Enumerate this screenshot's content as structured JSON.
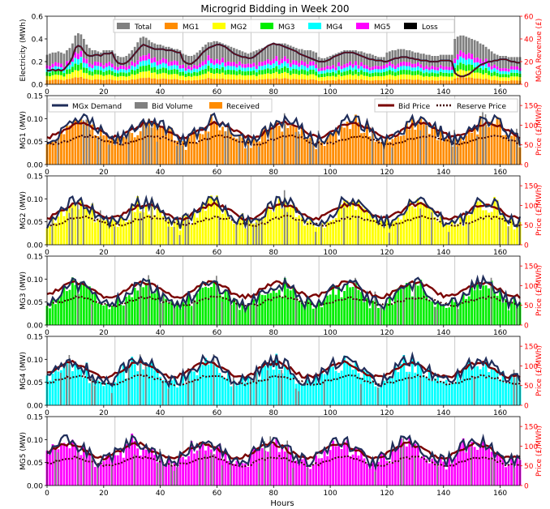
{
  "title": "Microgrid Bidding in Week 200",
  "xlabel": "Hours",
  "colors": {
    "total": "#808080",
    "mg": [
      "#ff8c00",
      "#ffff00",
      "#00ee00",
      "#00ffff",
      "#ff00ff"
    ],
    "loss": "#000000",
    "demand": "#1f2d5a",
    "bid_price": "#7a0000",
    "reserve_price": "#400000",
    "right_axis": "#ff0000"
  },
  "chart_data": [
    {
      "type": "bar",
      "panel": "summary",
      "ylabel": "Electricity (MWh)",
      "y2label": "MGA Revenue (£)",
      "ylim": [
        0,
        0.6
      ],
      "y2lim": [
        0,
        60
      ],
      "xlim": [
        0,
        167
      ],
      "yticks": [
        "0.0",
        "0.2",
        "0.4",
        "0.6"
      ],
      "y2ticks": [
        "0",
        "20",
        "40",
        "60"
      ],
      "xticks": [
        "0",
        "20",
        "40",
        "60",
        "80",
        "100",
        "120",
        "140",
        "160"
      ],
      "legend_position": "top",
      "legend": [
        "Total",
        "MG1",
        "MG2",
        "MG3",
        "MG4",
        "MG5",
        "Loss"
      ],
      "x": "hours 0–167",
      "series": [
        {
          "name": "Total",
          "values": [
            0.26,
            0.27,
            0.28,
            0.28,
            0.29,
            0.28,
            0.27,
            0.3,
            0.32,
            0.36,
            0.43,
            0.45,
            0.44,
            0.4,
            0.35,
            0.32,
            0.3,
            0.3,
            0.29,
            0.28,
            0.3,
            0.3,
            0.3,
            0.3,
            0.27,
            0.25,
            0.24,
            0.24,
            0.25,
            0.27,
            0.3,
            0.33,
            0.37,
            0.41,
            0.42,
            0.41,
            0.39,
            0.37,
            0.36,
            0.35,
            0.35,
            0.34,
            0.33,
            0.33,
            0.32,
            0.31,
            0.31,
            0.3,
            0.27,
            0.26,
            0.25,
            0.25,
            0.26,
            0.28,
            0.3,
            0.33,
            0.35,
            0.37,
            0.37,
            0.38,
            0.38,
            0.37,
            0.36,
            0.35,
            0.34,
            0.33,
            0.32,
            0.31,
            0.3,
            0.29,
            0.28,
            0.27,
            0.28,
            0.29,
            0.3,
            0.31,
            0.32,
            0.33,
            0.34,
            0.35,
            0.36,
            0.36,
            0.36,
            0.36,
            0.36,
            0.35,
            0.34,
            0.33,
            0.32,
            0.31,
            0.31,
            0.3,
            0.3,
            0.3,
            0.29,
            0.28,
            0.24,
            0.23,
            0.23,
            0.24,
            0.25,
            0.26,
            0.27,
            0.28,
            0.29,
            0.3,
            0.3,
            0.3,
            0.3,
            0.3,
            0.29,
            0.29,
            0.28,
            0.27,
            0.27,
            0.26,
            0.25,
            0.24,
            0.24,
            0.24,
            0.28,
            0.29,
            0.3,
            0.3,
            0.31,
            0.31,
            0.31,
            0.3,
            0.3,
            0.29,
            0.28,
            0.28,
            0.27,
            0.27,
            0.26,
            0.26,
            0.25,
            0.25,
            0.25,
            0.26,
            0.26,
            0.26,
            0.26,
            0.26,
            0.4,
            0.42,
            0.43,
            0.43,
            0.42,
            0.41,
            0.4,
            0.39,
            0.38,
            0.36,
            0.35,
            0.33,
            0.31,
            0.29,
            0.27,
            0.26,
            0.25,
            0.25,
            0.25,
            0.24,
            0.24,
            0.24,
            0.24,
            0.24
          ]
        },
        {
          "name": "Loss",
          "values": [
            0.12,
            0.12,
            0.13,
            0.12,
            0.13,
            0.12,
            0.13,
            0.16,
            0.19,
            0.24,
            0.32,
            0.34,
            0.33,
            0.29,
            0.26,
            0.25,
            0.25,
            0.26,
            0.26,
            0.25,
            0.27,
            0.27,
            0.27,
            0.28,
            0.22,
            0.19,
            0.18,
            0.18,
            0.19,
            0.21,
            0.24,
            0.27,
            0.3,
            0.33,
            0.35,
            0.34,
            0.33,
            0.32,
            0.31,
            0.31,
            0.31,
            0.31,
            0.3,
            0.3,
            0.3,
            0.29,
            0.28,
            0.28,
            0.21,
            0.19,
            0.18,
            0.18,
            0.2,
            0.22,
            0.25,
            0.28,
            0.3,
            0.32,
            0.33,
            0.34,
            0.35,
            0.35,
            0.34,
            0.33,
            0.31,
            0.29,
            0.27,
            0.26,
            0.25,
            0.24,
            0.24,
            0.23,
            0.23,
            0.24,
            0.26,
            0.28,
            0.3,
            0.32,
            0.34,
            0.35,
            0.36,
            0.35,
            0.35,
            0.34,
            0.33,
            0.32,
            0.31,
            0.3,
            0.29,
            0.27,
            0.26,
            0.25,
            0.24,
            0.23,
            0.22,
            0.21,
            0.2,
            0.2,
            0.2,
            0.21,
            0.22,
            0.24,
            0.25,
            0.26,
            0.27,
            0.28,
            0.28,
            0.28,
            0.28,
            0.27,
            0.26,
            0.25,
            0.24,
            0.23,
            0.22,
            0.22,
            0.21,
            0.21,
            0.21,
            0.2,
            0.2,
            0.21,
            0.22,
            0.23,
            0.23,
            0.24,
            0.24,
            0.24,
            0.23,
            0.23,
            0.22,
            0.22,
            0.21,
            0.21,
            0.21,
            0.2,
            0.2,
            0.2,
            0.2,
            0.21,
            0.21,
            0.21,
            0.21,
            0.2,
            0.1,
            0.08,
            0.07,
            0.07,
            0.08,
            0.09,
            0.11,
            0.13,
            0.15,
            0.17,
            0.18,
            0.19,
            0.2,
            0.2,
            0.21,
            0.21,
            0.22,
            0.22,
            0.22,
            0.21,
            0.2,
            0.2,
            0.19,
            0.19
          ]
        },
        {
          "name": "MG1",
          "values": "share of Total (stacked bottom)"
        },
        {
          "name": "MG2",
          "values": "share of Total"
        },
        {
          "name": "MG3",
          "values": "share of Total"
        },
        {
          "name": "MG4",
          "values": "share of Total"
        },
        {
          "name": "MG5",
          "values": "share of Total"
        }
      ]
    },
    {
      "type": "bar",
      "panel": "MG1",
      "ylabel": "MG1 (MW)",
      "y2label": "Price (£/MWh)",
      "ylim": [
        0,
        0.15
      ],
      "y2lim": [
        0,
        175
      ],
      "yticks": [
        "0.00",
        "0.05",
        "0.10",
        "0.15"
      ],
      "y2ticks": [
        "0",
        "50",
        "100",
        "150"
      ],
      "legend": [
        "MGx Demand",
        "Bid Volume",
        "Received",
        "Bid Price",
        "Reserve Price"
      ],
      "demand_level": 0.075,
      "bid_price_level": 88,
      "reserve_price_level": 62
    },
    {
      "type": "bar",
      "panel": "MG2",
      "ylabel": "MG2 (MW)",
      "y2label": "Price (£/MWh)",
      "ylim": [
        0,
        0.15
      ],
      "y2lim": [
        0,
        175
      ],
      "yticks": [
        "0.00",
        "0.05",
        "0.10",
        "0.15"
      ],
      "y2ticks": [
        "0",
        "50",
        "100",
        "150"
      ],
      "demand_level": 0.072,
      "bid_price_level": 85,
      "reserve_price_level": 60
    },
    {
      "type": "bar",
      "panel": "MG3",
      "ylabel": "MG3 (MW)",
      "y2label": "Price (£/MWh)",
      "ylim": [
        0,
        0.15
      ],
      "y2lim": [
        0,
        175
      ],
      "yticks": [
        "0.00",
        "0.05",
        "0.10",
        "0.15"
      ],
      "y2ticks": [
        "0",
        "50",
        "100",
        "150"
      ],
      "demand_level": 0.068,
      "bid_price_level": 90,
      "reserve_price_level": 60
    },
    {
      "type": "bar",
      "panel": "MG4",
      "ylabel": "MG4 (MW)",
      "y2label": "Price (£/MWh)",
      "ylim": [
        0,
        0.15
      ],
      "y2lim": [
        0,
        175
      ],
      "yticks": [
        "0.00",
        "0.05",
        "0.10",
        "0.15"
      ],
      "y2ticks": [
        "0",
        "50",
        "100",
        "150"
      ],
      "demand_level": 0.075,
      "bid_price_level": 90,
      "reserve_price_level": 64
    },
    {
      "type": "bar",
      "panel": "MG5",
      "ylabel": "MG5 (MW)",
      "y2label": "Price (£/MWh)",
      "ylim": [
        0,
        0.15
      ],
      "y2lim": [
        0,
        175
      ],
      "yticks": [
        "0.00",
        "0.05",
        "0.10",
        "0.15"
      ],
      "y2ticks": [
        "0",
        "50",
        "100",
        "150"
      ],
      "demand_level": 0.075,
      "bid_price_level": 88,
      "reserve_price_level": 62
    }
  ],
  "panel_xticks": [
    "0",
    "20",
    "40",
    "60",
    "80",
    "100",
    "120",
    "140",
    "160"
  ]
}
